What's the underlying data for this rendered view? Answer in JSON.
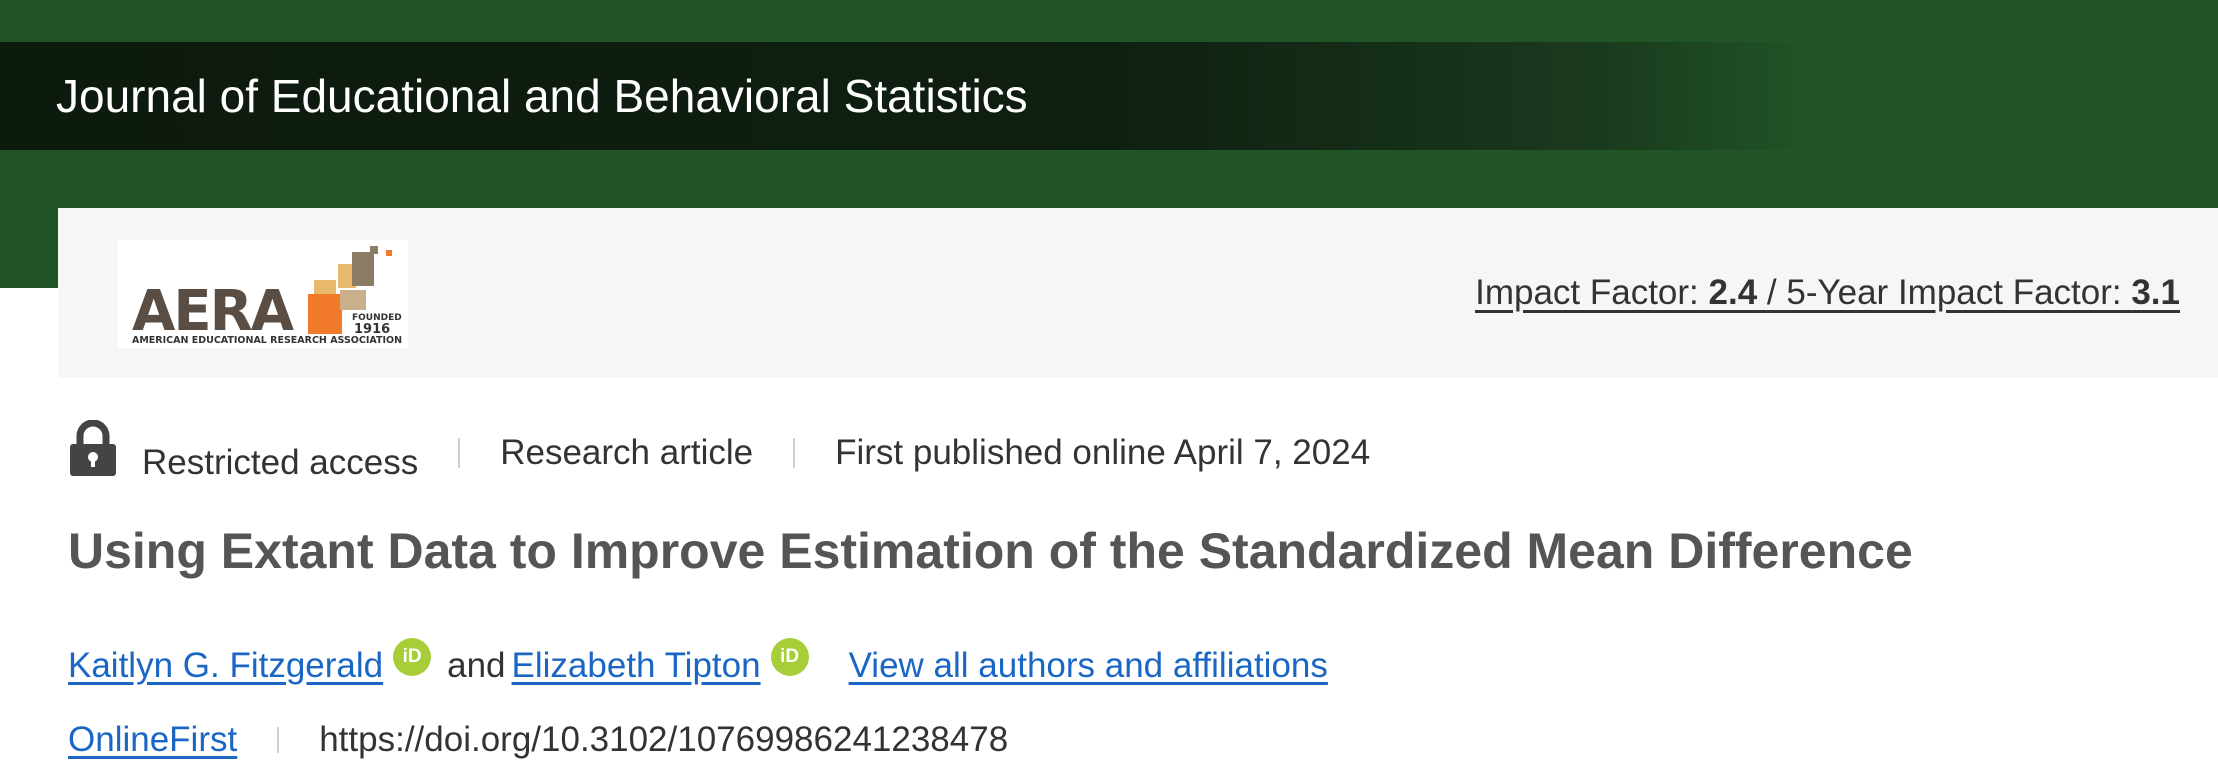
{
  "header": {
    "journal_title": "Journal of Educational and Behavioral Statistics"
  },
  "banner": {
    "logo": {
      "name": "AERA",
      "tagline": "AMERICAN EDUCATIONAL RESEARCH ASSOCIATION",
      "founded_label": "FOUNDED",
      "founded_year": "1916"
    },
    "impact_factor_label": "Impact Factor:",
    "impact_factor_value": "2.4",
    "separator": "/",
    "five_year_label": "5-Year Impact Factor:",
    "five_year_value": "3.1"
  },
  "article": {
    "access": "Restricted access",
    "type": "Research article",
    "published": "First published online April 7, 2024",
    "title": "Using Extant Data to Improve Estimation of the Standardized Mean Difference",
    "authors": [
      {
        "name": "Kaitlyn G. Fitzgerald",
        "orcid_badge": "iD"
      },
      {
        "name": "Elizabeth Tipton",
        "orcid_badge": "iD"
      }
    ],
    "author_joiner": "and",
    "view_all": "View all authors and affiliations",
    "issue_link": "OnlineFirst",
    "doi": "https://doi.org/10.3102/10769986241238478"
  },
  "colors": {
    "header_green": "#215527",
    "link_blue": "#1a66c4",
    "orcid_green": "#a6ce39"
  }
}
